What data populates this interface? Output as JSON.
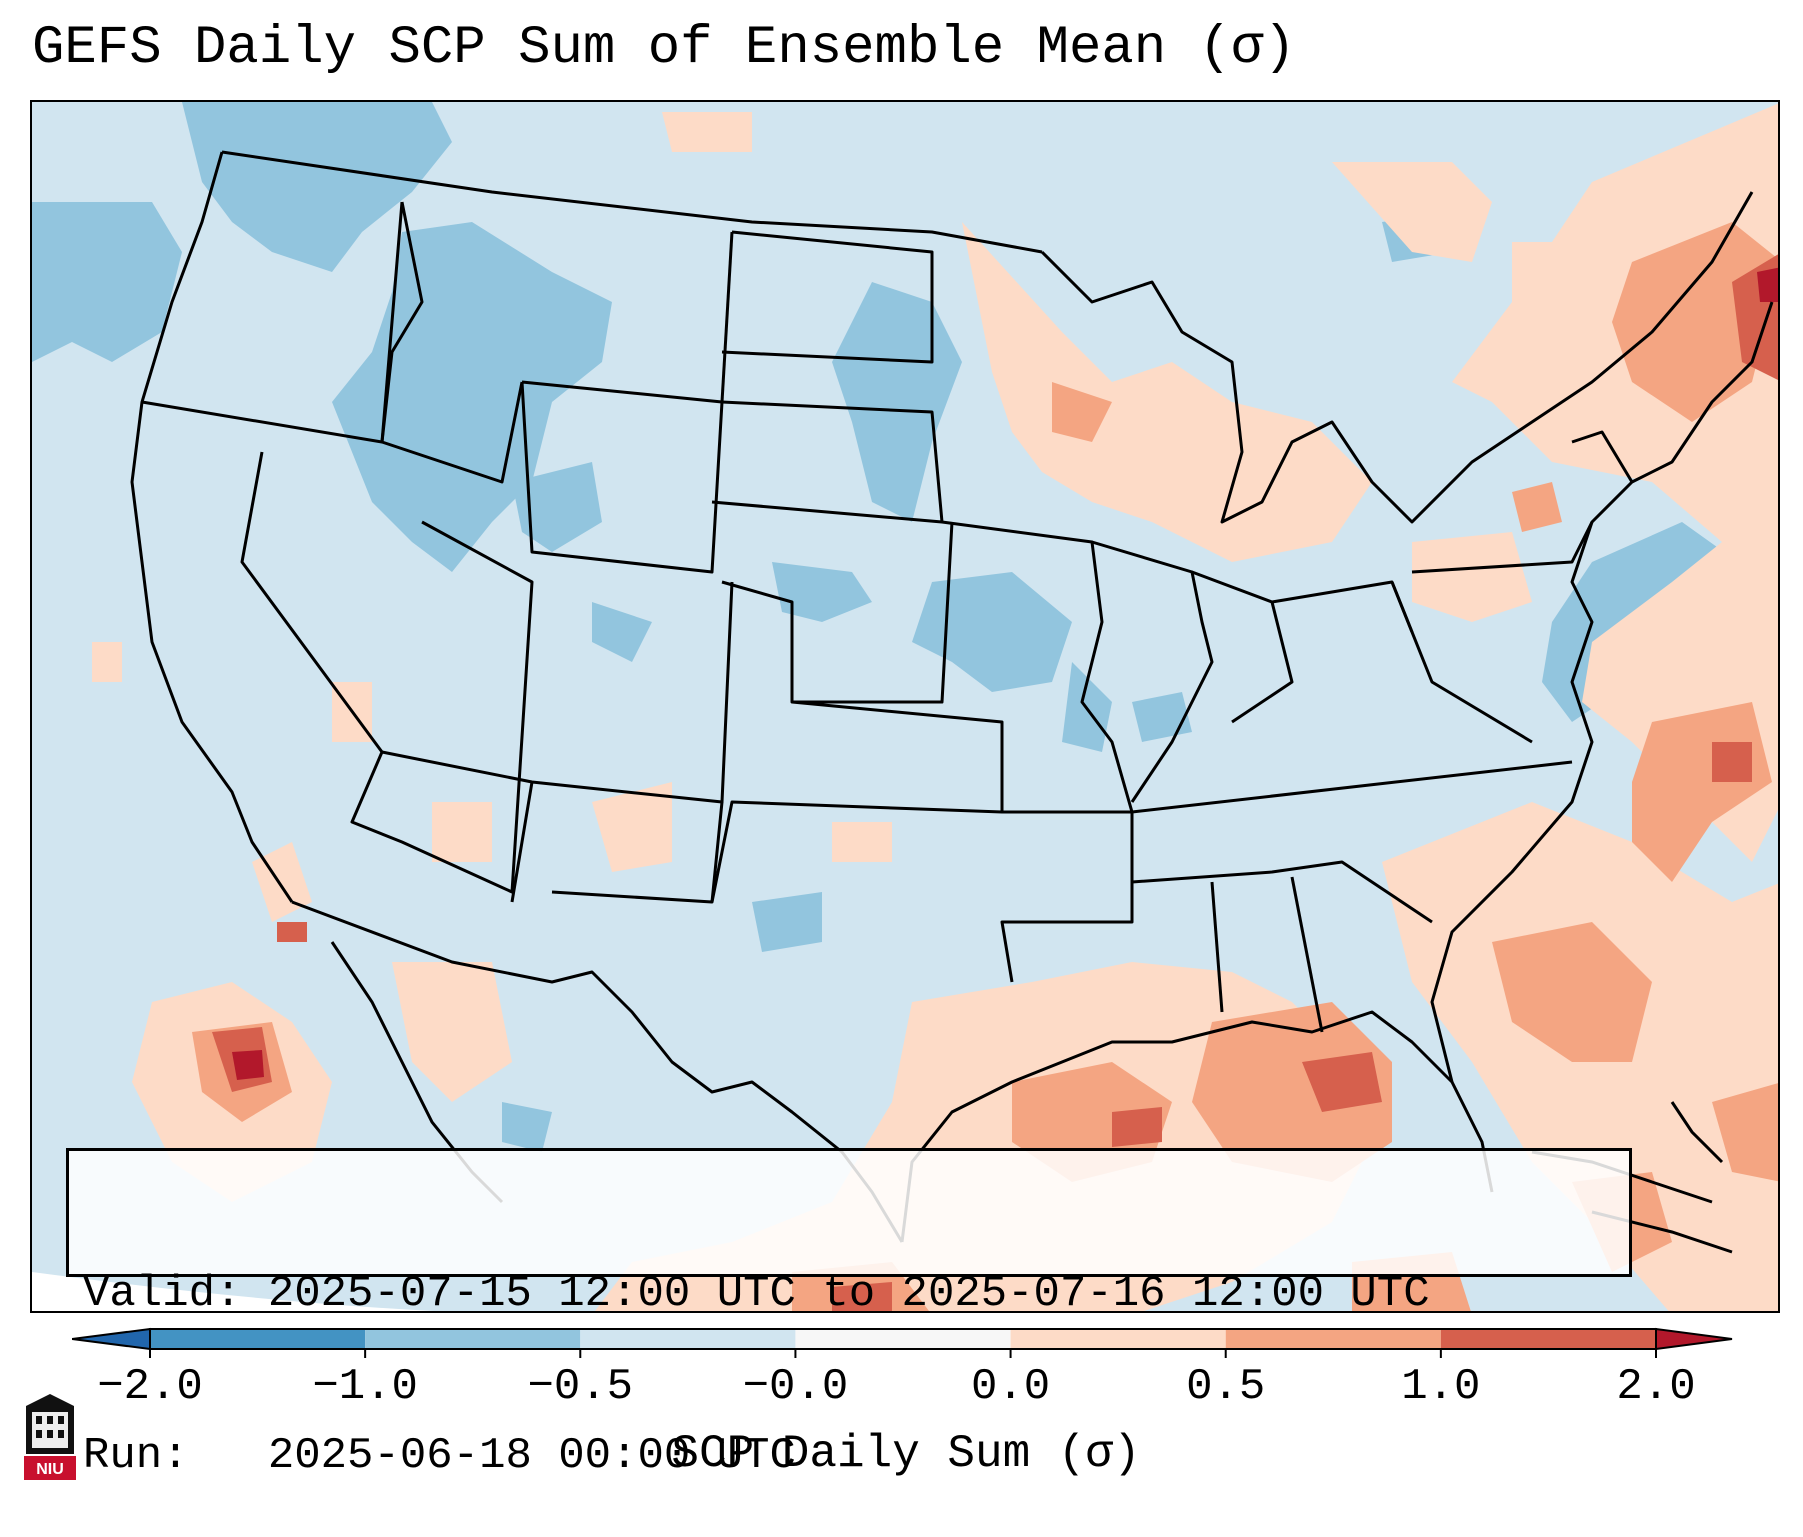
{
  "title": "GEFS Daily SCP Sum of Ensemble Mean (σ)",
  "info": {
    "valid": "Valid: 2025-07-15 12:00 UTC to 2025-07-16 12:00 UTC",
    "run": "Run:   2025-06-18 00:00 UTC"
  },
  "colorbar": {
    "label": "SCP Daily Sum (σ)",
    "ticks": [
      "−2.0",
      "−1.0",
      "−0.5",
      "−0.0",
      "0.0",
      "0.5",
      "1.0",
      "2.0"
    ],
    "colors": [
      "#4393c3",
      "#92c5de",
      "#d1e5f0",
      "#f7f7f7",
      "#fddbc7",
      "#f4a582",
      "#d6604d"
    ],
    "extend_low": "#2166ac",
    "extend_high": "#b2182b"
  },
  "logo": {
    "text": "NIU",
    "icon": "university-tower-icon"
  }
}
